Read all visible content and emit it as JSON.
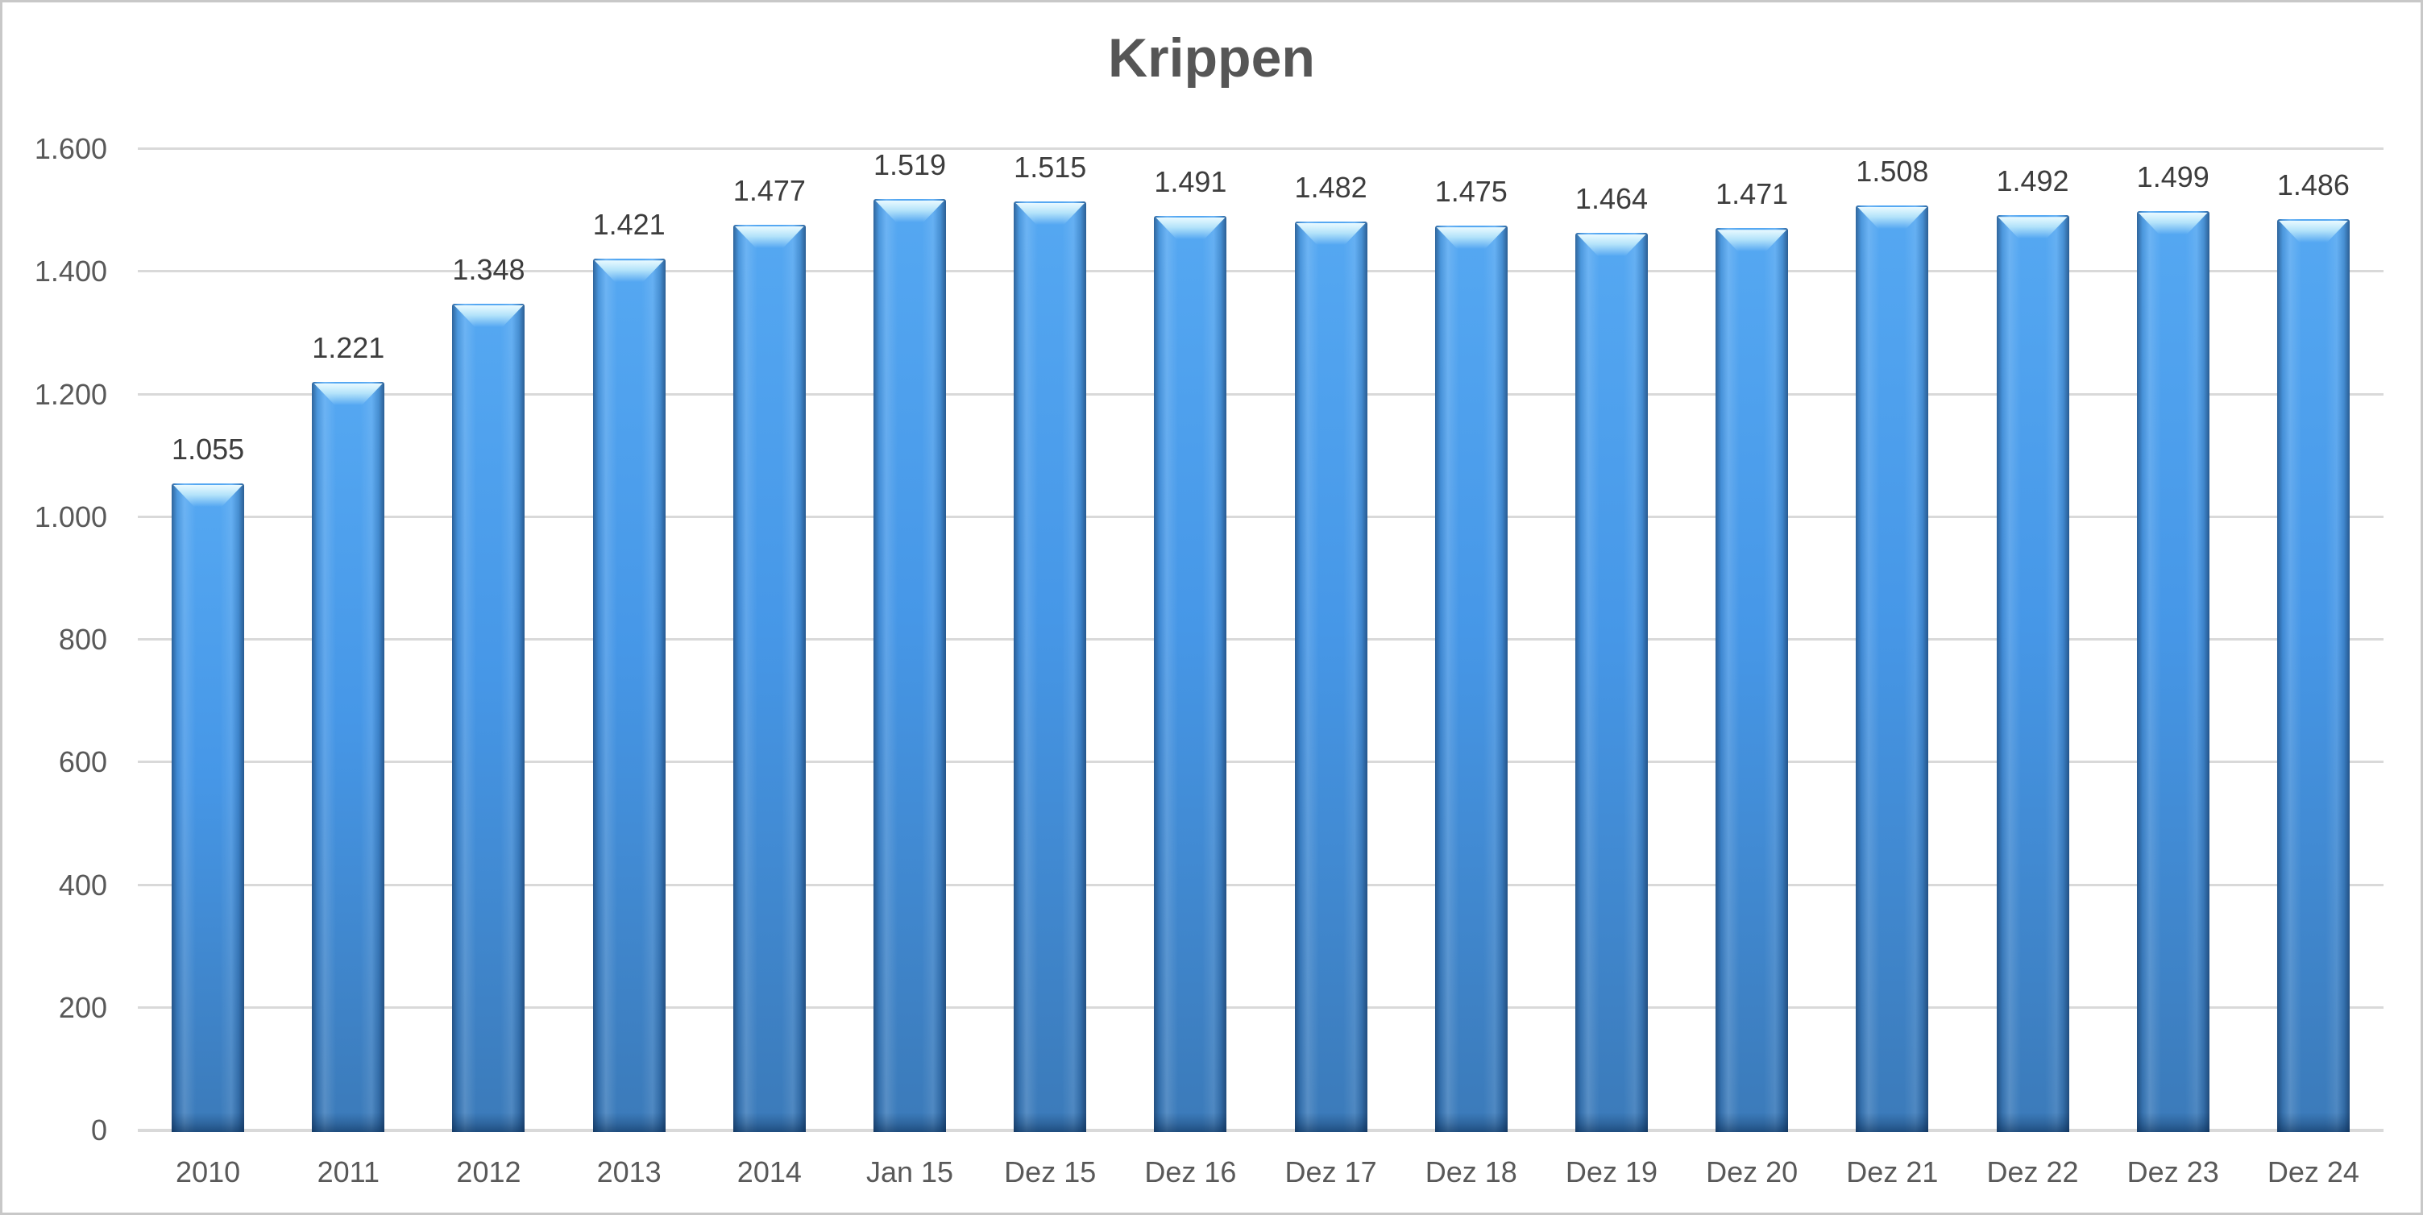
{
  "chart_data": {
    "type": "bar",
    "title": "Krippen",
    "categories": [
      "2010",
      "2011",
      "2012",
      "2013",
      "2014",
      "Jan 15",
      "Dez 15",
      "Dez 16",
      "Dez 17",
      "Dez 18",
      "Dez 19",
      "Dez 20",
      "Dez 21",
      "Dez 22",
      "Dez 23",
      "Dez 24"
    ],
    "values": [
      1055,
      1221,
      1348,
      1421,
      1477,
      1519,
      1515,
      1491,
      1482,
      1475,
      1464,
      1471,
      1508,
      1492,
      1499,
      1486
    ],
    "value_labels": [
      "1.055",
      "1.221",
      "1.348",
      "1.421",
      "1.477",
      "1.519",
      "1.515",
      "1.491",
      "1.482",
      "1.475",
      "1.464",
      "1.471",
      "1.508",
      "1.492",
      "1.499",
      "1.486"
    ],
    "xlabel": "",
    "ylabel": "",
    "ylim": [
      0,
      1600
    ],
    "ytick_step": 200,
    "ytick_labels": [
      "0",
      "200",
      "400",
      "600",
      "800",
      "1.000",
      "1.200",
      "1.400",
      "1.600"
    ],
    "grid": true,
    "legend": false,
    "number_format": "german-thousands-dot",
    "colors": {
      "bar_top": "#55a8f2",
      "bar_mid": "#4697e7",
      "bar_bottom": "#3b7ab9",
      "bevel_highlight": "#eafaff",
      "grid": "#d9d9d9",
      "axis_text": "#595959",
      "value_text": "#3d3d3d",
      "title_text": "#565656",
      "frame_border": "#c8c8c8",
      "background": "#ffffff"
    }
  }
}
